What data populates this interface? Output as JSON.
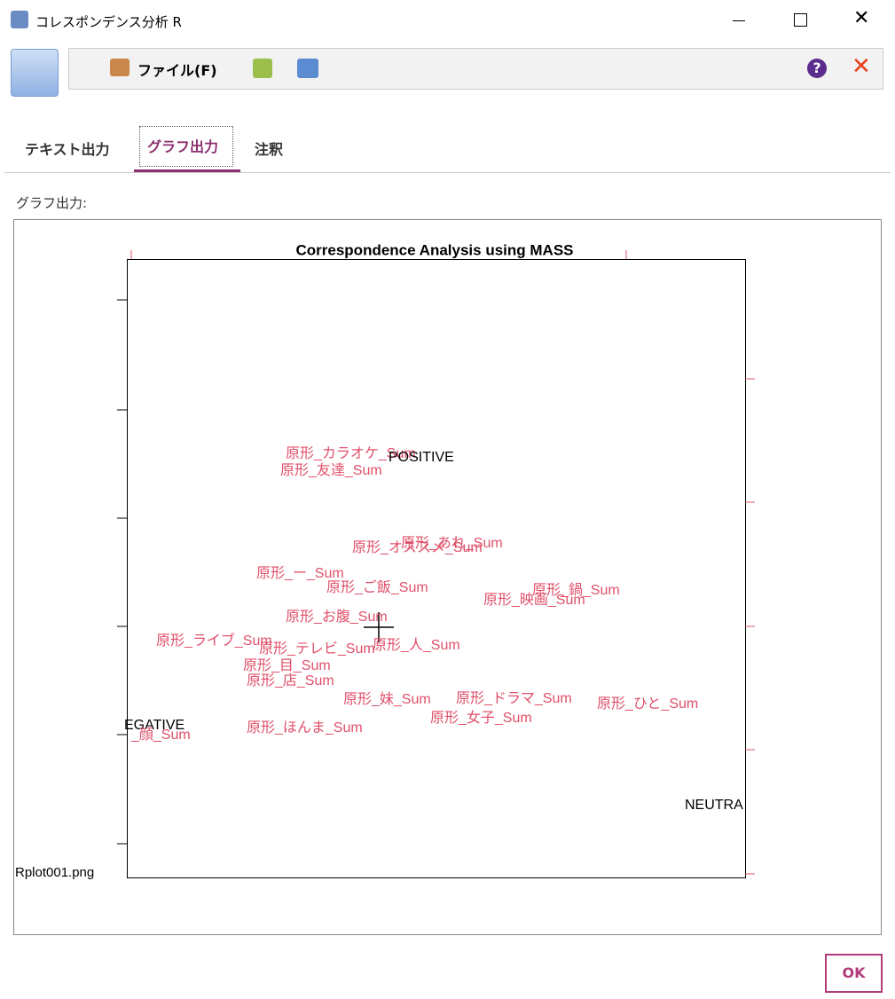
{
  "window": {
    "title": "コレスポンデンス分析 R"
  },
  "toolbar": {
    "file_menu": "ファイル(F)"
  },
  "tabs": [
    "テキスト出力",
    "グラフ出力",
    "注釈"
  ],
  "output_label": "グラフ出力:",
  "plot": {
    "title": "Correspondence Analysis using MASS",
    "labels": [
      "原形_カラオケ_Sum",
      "POSITIVE",
      "原形_友達_Sum",
      "原形_あれ_Sum",
      "原形_オススメ_Sum",
      "原形_ー_Sum",
      "原形_ご飯_Sum",
      "原形_鍋_Sum",
      "原形_映画_Sum",
      "原形_お腹_Sum",
      "原形_ライブ_Sum",
      "原形_テレビ_Sum",
      "原形_人_Sum",
      "原形_目_Sum",
      "原形_店_Sum",
      "原形_妹_Sum",
      "原形_ドラマ_Sum",
      "原形_ひと_Sum",
      "原形_女子_Sum",
      "原形_ほんま_Sum",
      "EGATIVE",
      "_顔_Sum",
      "NEUTRA"
    ],
    "filename": "Rplot001.png"
  },
  "buttons": {
    "ok": "OK"
  }
}
